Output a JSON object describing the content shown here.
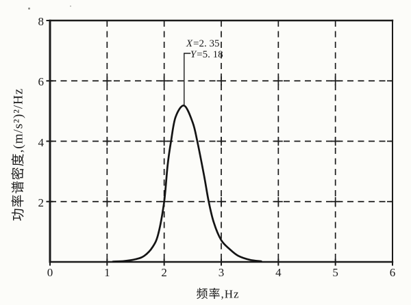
{
  "chart_data": {
    "type": "line",
    "title": "",
    "xlabel": "频率,Hz",
    "ylabel": "功率谱密度,(m/s²)²/Hz",
    "xlim": [
      0,
      6
    ],
    "ylim": [
      0,
      8
    ],
    "x_ticks": [
      0,
      1,
      2,
      3,
      4,
      5,
      6
    ],
    "x_tick_labels": [
      "0",
      "1",
      "2",
      "3",
      "4",
      "5",
      "6"
    ],
    "y_ticks": [
      2,
      4,
      6,
      8
    ],
    "y_tick_labels": [
      "2",
      "4",
      "6",
      "8"
    ],
    "grid": {
      "style": "dashed",
      "x_lines": [
        1,
        2,
        3,
        4,
        5
      ],
      "y_lines": [
        2,
        4,
        6
      ],
      "crosses_at_intersections": true
    },
    "legend": "none",
    "series": [
      {
        "name": "power-spectral-density-curve",
        "color": "#141414",
        "points": [
          [
            1.1,
            0.01
          ],
          [
            1.3,
            0.03
          ],
          [
            1.5,
            0.09
          ],
          [
            1.65,
            0.2
          ],
          [
            1.8,
            0.5
          ],
          [
            1.9,
            0.95
          ],
          [
            2.0,
            2.0
          ],
          [
            2.06,
            3.2
          ],
          [
            2.12,
            4.0
          ],
          [
            2.2,
            4.8
          ],
          [
            2.35,
            5.18
          ],
          [
            2.5,
            4.62
          ],
          [
            2.58,
            4.0
          ],
          [
            2.7,
            2.85
          ],
          [
            2.78,
            2.0
          ],
          [
            2.87,
            1.3
          ],
          [
            3.0,
            0.72
          ],
          [
            3.15,
            0.42
          ],
          [
            3.3,
            0.2
          ],
          [
            3.5,
            0.07
          ],
          [
            3.7,
            0.02
          ]
        ]
      }
    ],
    "peak": {
      "x": 2.35,
      "y": 5.18
    },
    "annotation": {
      "x_var": "X",
      "x_val": "=2. 35",
      "y_var": "Y",
      "y_val": "=5. 18",
      "target": {
        "x": 2.35,
        "y": 5.18
      }
    },
    "colors": {
      "ink": "#1a1a1a",
      "background": "#fcfcf9"
    }
  }
}
